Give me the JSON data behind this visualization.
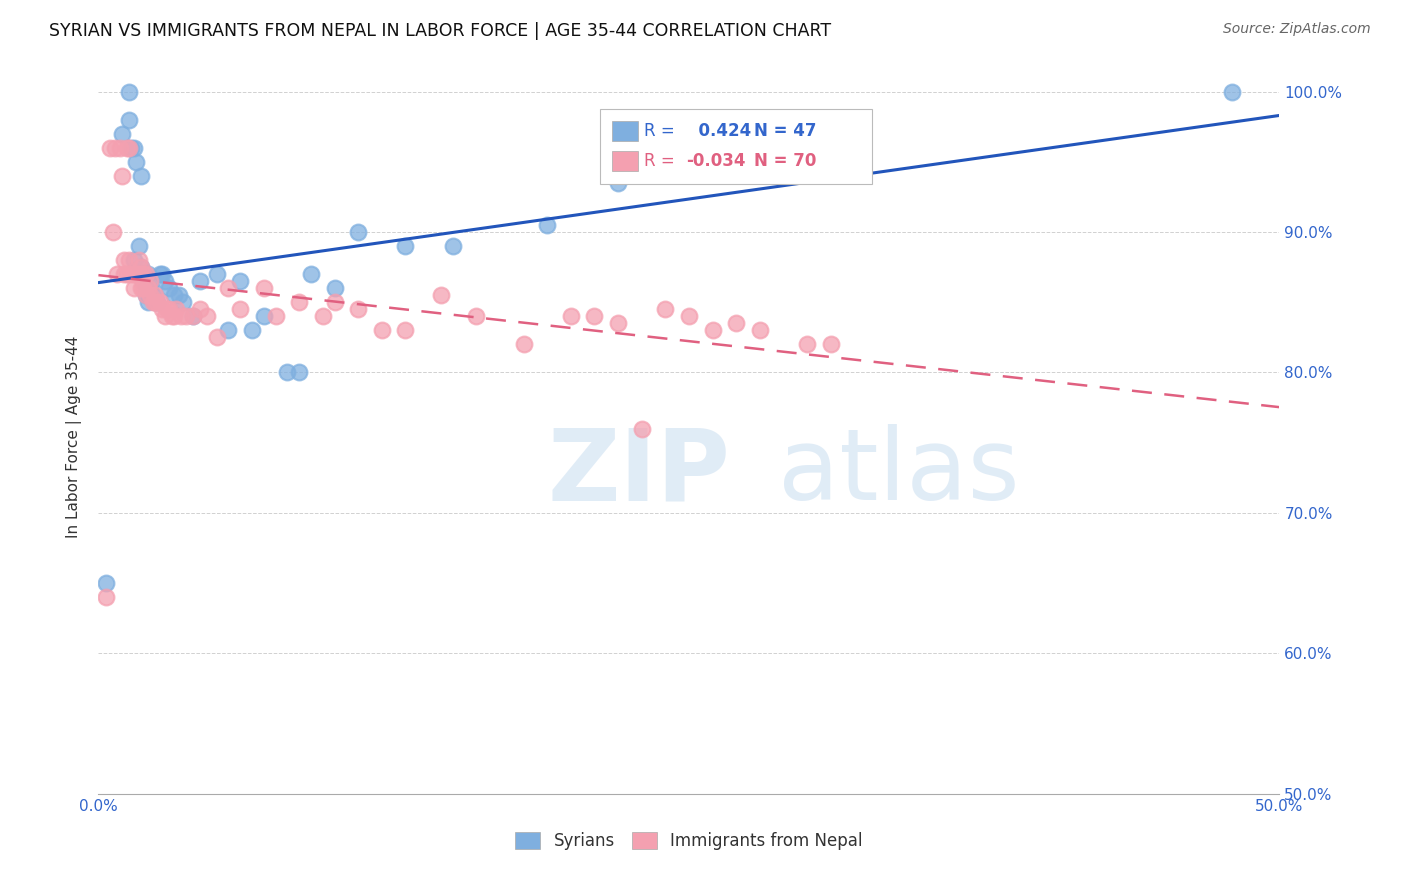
{
  "title": "SYRIAN VS IMMIGRANTS FROM NEPAL IN LABOR FORCE | AGE 35-44 CORRELATION CHART",
  "source": "Source: ZipAtlas.com",
  "ylabel": "In Labor Force | Age 35-44",
  "xlim": [
    0.0,
    0.5
  ],
  "ylim": [
    0.5,
    1.008
  ],
  "xticks": [
    0.0,
    0.05,
    0.1,
    0.15,
    0.2,
    0.25,
    0.3,
    0.35,
    0.4,
    0.45,
    0.5
  ],
  "xticklabels": [
    "0.0%",
    "",
    "",
    "",
    "",
    "",
    "",
    "",
    "",
    "",
    "50.0%"
  ],
  "yticks": [
    0.5,
    0.6,
    0.7,
    0.8,
    0.9,
    1.0
  ],
  "yticklabels": [
    "50.0%",
    "60.0%",
    "70.0%",
    "80.0%",
    "90.0%",
    "100.0%"
  ],
  "blue_color": "#7fafdf",
  "pink_color": "#f4a0b0",
  "blue_line_color": "#2255bb",
  "pink_line_color": "#e06080",
  "blue_R": 0.424,
  "blue_N": 47,
  "pink_R": -0.034,
  "pink_N": 70,
  "legend_label_blue": "Syrians",
  "legend_label_pink": "Immigrants from Nepal",
  "blue_scatter_x": [
    0.003,
    0.01,
    0.013,
    0.013,
    0.014,
    0.015,
    0.015,
    0.016,
    0.017,
    0.018,
    0.018,
    0.019,
    0.019,
    0.02,
    0.02,
    0.021,
    0.021,
    0.022,
    0.023,
    0.024,
    0.025,
    0.026,
    0.027,
    0.028,
    0.03,
    0.032,
    0.034,
    0.036,
    0.04,
    0.043,
    0.05,
    0.055,
    0.06,
    0.065,
    0.07,
    0.08,
    0.085,
    0.09,
    0.1,
    0.11,
    0.13,
    0.15,
    0.19,
    0.22,
    0.26,
    0.31,
    0.48
  ],
  "blue_scatter_y": [
    0.65,
    0.97,
    0.98,
    1.0,
    0.96,
    0.96,
    0.88,
    0.95,
    0.89,
    0.94,
    0.875,
    0.87,
    0.865,
    0.86,
    0.855,
    0.87,
    0.85,
    0.86,
    0.855,
    0.85,
    0.85,
    0.87,
    0.87,
    0.865,
    0.86,
    0.855,
    0.855,
    0.85,
    0.84,
    0.865,
    0.87,
    0.83,
    0.865,
    0.83,
    0.84,
    0.8,
    0.8,
    0.87,
    0.86,
    0.9,
    0.89,
    0.89,
    0.905,
    0.935,
    0.945,
    0.96,
    1.0
  ],
  "pink_scatter_x": [
    0.003,
    0.005,
    0.006,
    0.007,
    0.008,
    0.009,
    0.01,
    0.011,
    0.011,
    0.012,
    0.012,
    0.013,
    0.013,
    0.014,
    0.015,
    0.015,
    0.016,
    0.017,
    0.017,
    0.018,
    0.018,
    0.019,
    0.019,
    0.02,
    0.02,
    0.021,
    0.022,
    0.022,
    0.023,
    0.024,
    0.024,
    0.025,
    0.026,
    0.027,
    0.028,
    0.029,
    0.03,
    0.031,
    0.032,
    0.033,
    0.035,
    0.037,
    0.04,
    0.043,
    0.046,
    0.05,
    0.055,
    0.06,
    0.07,
    0.075,
    0.085,
    0.095,
    0.1,
    0.11,
    0.12,
    0.13,
    0.145,
    0.16,
    0.18,
    0.2,
    0.21,
    0.22,
    0.23,
    0.24,
    0.25,
    0.26,
    0.27,
    0.28,
    0.3,
    0.31
  ],
  "pink_scatter_y": [
    0.64,
    0.96,
    0.9,
    0.96,
    0.87,
    0.96,
    0.94,
    0.88,
    0.87,
    0.96,
    0.87,
    0.96,
    0.88,
    0.87,
    0.87,
    0.86,
    0.87,
    0.88,
    0.87,
    0.875,
    0.86,
    0.87,
    0.86,
    0.87,
    0.855,
    0.86,
    0.855,
    0.865,
    0.85,
    0.855,
    0.85,
    0.85,
    0.85,
    0.845,
    0.84,
    0.845,
    0.845,
    0.84,
    0.84,
    0.845,
    0.84,
    0.84,
    0.84,
    0.845,
    0.84,
    0.825,
    0.86,
    0.845,
    0.86,
    0.84,
    0.85,
    0.84,
    0.85,
    0.845,
    0.83,
    0.83,
    0.855,
    0.84,
    0.82,
    0.84,
    0.84,
    0.835,
    0.76,
    0.845,
    0.84,
    0.83,
    0.835,
    0.83,
    0.82,
    0.82
  ]
}
